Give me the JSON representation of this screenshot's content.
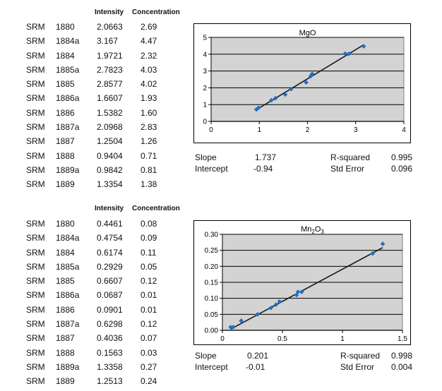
{
  "tables": [
    {
      "headers": {
        "intensity": "Intensity",
        "concentration": "Concentration"
      },
      "rows": [
        {
          "prefix": "SRM",
          "id": "1880",
          "intensity": "2.0663",
          "concentration": "2.69"
        },
        {
          "prefix": "SRM",
          "id": "1884a",
          "intensity": "3.167",
          "concentration": "4.47"
        },
        {
          "prefix": "SRM",
          "id": "1884",
          "intensity": "1.9721",
          "concentration": "2.32"
        },
        {
          "prefix": "SRM",
          "id": "1885a",
          "intensity": "2.7823",
          "concentration": "4.03"
        },
        {
          "prefix": "SRM",
          "id": "1885",
          "intensity": "2.8577",
          "concentration": "4.02"
        },
        {
          "prefix": "SRM",
          "id": "1886a",
          "intensity": "1.6607",
          "concentration": "1.93"
        },
        {
          "prefix": "SRM",
          "id": "1886",
          "intensity": "1.5382",
          "concentration": "1.60"
        },
        {
          "prefix": "SRM",
          "id": "1887a",
          "intensity": "2.0968",
          "concentration": "2.83"
        },
        {
          "prefix": "SRM",
          "id": "1887",
          "intensity": "1.2504",
          "concentration": "1.26"
        },
        {
          "prefix": "SRM",
          "id": "1888",
          "intensity": "0.9404",
          "concentration": "0.71"
        },
        {
          "prefix": "SRM",
          "id": "1889a",
          "intensity": "0.9842",
          "concentration": "0.81"
        },
        {
          "prefix": "SRM",
          "id": "1889",
          "intensity": "1.3354",
          "concentration": "1.38"
        }
      ]
    },
    {
      "headers": {
        "intensity": "Intensity",
        "concentration": "Concentration"
      },
      "rows": [
        {
          "prefix": "SRM",
          "id": "1880",
          "intensity": "0.4461",
          "concentration": "0.08"
        },
        {
          "prefix": "SRM",
          "id": "1884a",
          "intensity": "0.4754",
          "concentration": "0.09"
        },
        {
          "prefix": "SRM",
          "id": "1884",
          "intensity": "0.6174",
          "concentration": "0.11"
        },
        {
          "prefix": "SRM",
          "id": "1885a",
          "intensity": "0.2929",
          "concentration": "0.05"
        },
        {
          "prefix": "SRM",
          "id": "1885",
          "intensity": "0.6607",
          "concentration": "0.12"
        },
        {
          "prefix": "SRM",
          "id": "1886a",
          "intensity": "0.0687",
          "concentration": "0.01"
        },
        {
          "prefix": "SRM",
          "id": "1886",
          "intensity": "0.0901",
          "concentration": "0.01"
        },
        {
          "prefix": "SRM",
          "id": "1887a",
          "intensity": "0.6298",
          "concentration": "0.12"
        },
        {
          "prefix": "SRM",
          "id": "1887",
          "intensity": "0.4036",
          "concentration": "0.07"
        },
        {
          "prefix": "SRM",
          "id": "1888",
          "intensity": "0.1563",
          "concentration": "0.03"
        },
        {
          "prefix": "SRM",
          "id": "1889a",
          "intensity": "1.3358",
          "concentration": "0.27"
        },
        {
          "prefix": "SRM",
          "id": "1889",
          "intensity": "1.2513",
          "concentration": "0.24"
        }
      ]
    }
  ],
  "stats": [
    {
      "slope_label": "Slope",
      "slope": "1.737",
      "intercept_label": "Intercept",
      "intercept": "-0.94",
      "rsq_label": "R-squared",
      "rsq": "0.995",
      "stderr_label": "Std Error",
      "stderr": "0.096"
    },
    {
      "slope_label": "Slope",
      "slope": "0.201",
      "intercept_label": "Intercept",
      "intercept": "-0.01",
      "rsq_label": "R-squared",
      "rsq": "0.998",
      "stderr_label": "Std Error",
      "stderr": "0.004"
    }
  ],
  "chart_data": [
    {
      "type": "scatter",
      "title": "MgO",
      "xlabel": "",
      "ylabel": "",
      "xlim": [
        0,
        4
      ],
      "ylim": [
        0,
        5
      ],
      "xticks": [
        "0",
        "1",
        "2",
        "3",
        "4"
      ],
      "yticks": [
        "0",
        "1",
        "2",
        "3",
        "4",
        "5"
      ],
      "grid": "horizontal",
      "point_color": "#1f6fc5",
      "plot_bg": "#d3d3d3",
      "x": [
        2.0663,
        3.167,
        1.9721,
        2.7823,
        2.8577,
        1.6607,
        1.5382,
        2.0968,
        1.2504,
        0.9404,
        0.9842,
        1.3354
      ],
      "y": [
        2.69,
        4.47,
        2.32,
        4.03,
        4.02,
        1.93,
        1.6,
        2.83,
        1.26,
        0.71,
        0.81,
        1.38
      ],
      "fit": {
        "slope": 1.737,
        "intercept": -0.94
      }
    },
    {
      "type": "scatter",
      "title": "Mn2O3",
      "title_parts": {
        "base": "Mn",
        "sub1": "2",
        "mid": "O",
        "sub2": "3"
      },
      "xlabel": "",
      "ylabel": "",
      "xlim": [
        0,
        1.5
      ],
      "ylim": [
        0,
        0.3
      ],
      "xticks": [
        "0",
        "0.5",
        "1",
        "1.5"
      ],
      "yticks": [
        "0.00",
        "0.05",
        "0.10",
        "0.15",
        "0.20",
        "0.25",
        "0.30"
      ],
      "grid": "horizontal",
      "point_color": "#1f6fc5",
      "plot_bg": "#d3d3d3",
      "x": [
        0.4461,
        0.4754,
        0.6174,
        0.2929,
        0.6607,
        0.0687,
        0.0901,
        0.6298,
        0.4036,
        0.1563,
        1.3358,
        1.2513
      ],
      "y": [
        0.08,
        0.09,
        0.11,
        0.05,
        0.12,
        0.01,
        0.01,
        0.12,
        0.07,
        0.03,
        0.27,
        0.24
      ],
      "fit": {
        "slope": 0.201,
        "intercept": -0.01
      }
    }
  ]
}
